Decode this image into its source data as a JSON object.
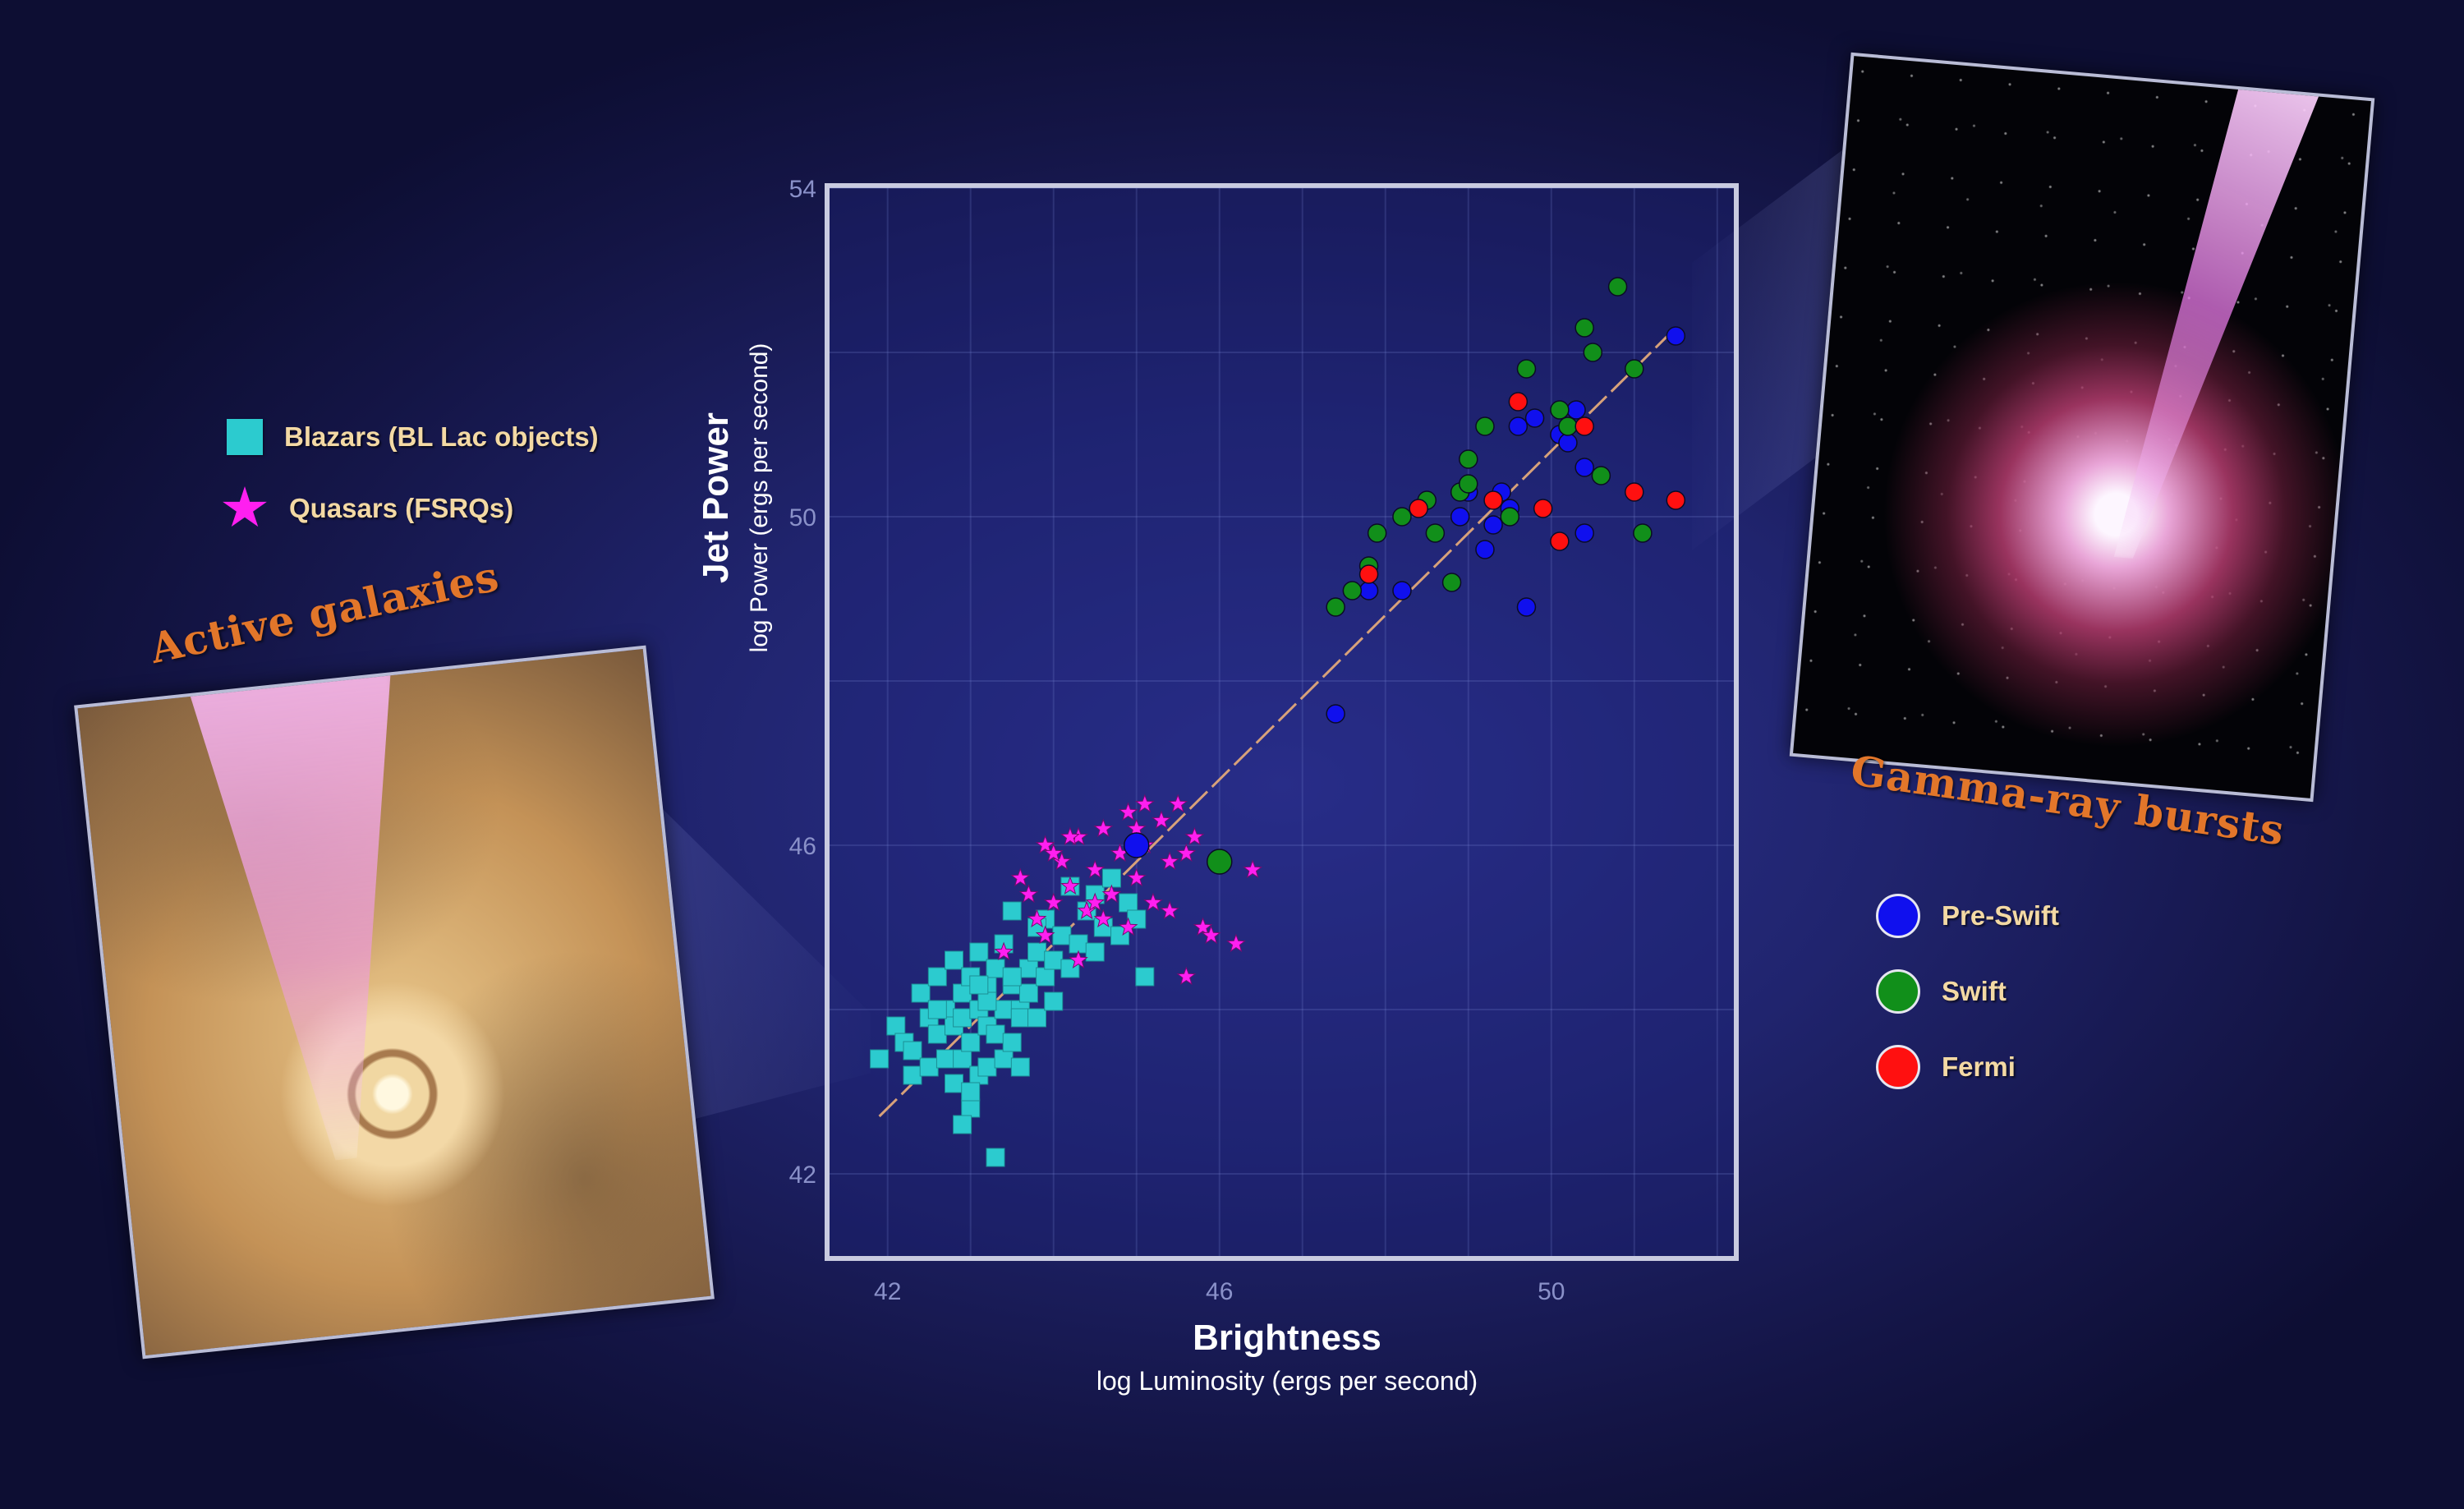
{
  "colors": {
    "blazar": "#2ccbcf",
    "quasar": "#ff1ff0",
    "pre_swift": "#1010ee",
    "swift": "#118f1a",
    "fermi": "#ff1010",
    "fit_line": "#d7a17a"
  },
  "legend_left": [
    {
      "label": "Blazars (BL Lac objects)",
      "icon": "teal-square-icon"
    },
    {
      "label": "Quasars (FSRQs)",
      "icon": "magenta-star-icon"
    }
  ],
  "legend_right": [
    {
      "label": "Pre-Swift",
      "icon": "blue-dot-icon"
    },
    {
      "label": "Swift",
      "icon": "green-dot-icon"
    },
    {
      "label": "Fermi",
      "icon": "red-dot-icon"
    }
  ],
  "images": {
    "agn_title": "Active galaxies",
    "grb_title": "Gamma-ray bursts"
  },
  "chart_data": {
    "type": "scatter",
    "xlabel": "Brightness",
    "xlabel_sub": "log Luminosity (ergs per second)",
    "ylabel": "Jet Power",
    "ylabel_sub": "log Power (ergs per second)",
    "xlim": [
      41.3,
      52.2
    ],
    "ylim": [
      41.0,
      54.0
    ],
    "xticks": [
      42,
      46,
      50
    ],
    "yticks": [
      42,
      46,
      50,
      54
    ],
    "grid": true,
    "legend": "outside-left-and-right",
    "fit_line": {
      "x": [
        41.9,
        51.4
      ],
      "y": [
        42.7,
        52.2
      ]
    },
    "series": [
      {
        "name": "Blazars (BL Lac objects)",
        "marker": "square",
        "points": [
          [
            41.9,
            43.4
          ],
          [
            42.1,
            43.8
          ],
          [
            42.2,
            43.6
          ],
          [
            42.3,
            43.2
          ],
          [
            42.3,
            43.5
          ],
          [
            42.4,
            44.2
          ],
          [
            42.5,
            43.9
          ],
          [
            42.5,
            43.3
          ],
          [
            42.6,
            43.7
          ],
          [
            42.6,
            44.4
          ],
          [
            42.7,
            43.4
          ],
          [
            42.7,
            44.0
          ],
          [
            42.8,
            43.8
          ],
          [
            42.8,
            43.1
          ],
          [
            42.8,
            44.6
          ],
          [
            42.9,
            43.4
          ],
          [
            42.9,
            43.9
          ],
          [
            42.9,
            44.2
          ],
          [
            43.0,
            43.6
          ],
          [
            43.0,
            44.4
          ],
          [
            43.0,
            42.8
          ],
          [
            43.1,
            43.2
          ],
          [
            43.1,
            44.0
          ],
          [
            43.1,
            44.7
          ],
          [
            43.2,
            43.8
          ],
          [
            43.2,
            43.3
          ],
          [
            43.2,
            44.3
          ],
          [
            43.3,
            43.7
          ],
          [
            43.3,
            42.2
          ],
          [
            43.3,
            44.5
          ],
          [
            43.4,
            43.4
          ],
          [
            43.4,
            44.0
          ],
          [
            43.4,
            44.8
          ],
          [
            43.5,
            43.6
          ],
          [
            43.5,
            44.3
          ],
          [
            43.6,
            44.0
          ],
          [
            43.6,
            43.9
          ],
          [
            43.7,
            44.5
          ],
          [
            43.7,
            44.2
          ],
          [
            43.8,
            43.9
          ],
          [
            43.8,
            44.7
          ],
          [
            43.9,
            44.4
          ],
          [
            43.9,
            45.1
          ],
          [
            44.0,
            44.1
          ],
          [
            44.0,
            44.6
          ],
          [
            44.1,
            44.9
          ],
          [
            44.2,
            44.5
          ],
          [
            44.3,
            44.8
          ],
          [
            44.4,
            45.2
          ],
          [
            44.5,
            44.7
          ],
          [
            44.5,
            45.4
          ],
          [
            44.6,
            45.0
          ],
          [
            44.7,
            45.6
          ],
          [
            44.8,
            44.9
          ],
          [
            44.9,
            45.3
          ],
          [
            45.0,
            45.1
          ],
          [
            45.1,
            44.4
          ],
          [
            43.5,
            44.4
          ],
          [
            43.2,
            44.1
          ],
          [
            43.0,
            43.0
          ],
          [
            42.9,
            42.6
          ],
          [
            43.6,
            43.3
          ],
          [
            43.8,
            45.0
          ],
          [
            43.5,
            45.2
          ],
          [
            44.2,
            45.5
          ],
          [
            42.6,
            44.0
          ],
          [
            43.1,
            44.3
          ]
        ]
      },
      {
        "name": "Quasars (FSRQs)",
        "marker": "star",
        "points": [
          [
            43.4,
            44.7
          ],
          [
            43.6,
            45.6
          ],
          [
            43.8,
            45.1
          ],
          [
            43.9,
            46.0
          ],
          [
            44.0,
            45.3
          ],
          [
            44.1,
            45.8
          ],
          [
            44.2,
            45.5
          ],
          [
            44.3,
            46.1
          ],
          [
            44.4,
            45.2
          ],
          [
            44.5,
            45.7
          ],
          [
            44.6,
            46.2
          ],
          [
            44.7,
            45.4
          ],
          [
            44.8,
            45.9
          ],
          [
            44.9,
            46.4
          ],
          [
            45.0,
            45.6
          ],
          [
            45.1,
            46.0
          ],
          [
            45.2,
            45.3
          ],
          [
            45.3,
            46.3
          ],
          [
            45.4,
            45.8
          ],
          [
            45.5,
            46.5
          ],
          [
            45.6,
            45.9
          ],
          [
            45.7,
            46.1
          ],
          [
            45.8,
            45.0
          ],
          [
            45.9,
            44.9
          ],
          [
            46.2,
            44.8
          ],
          [
            46.4,
            45.7
          ],
          [
            45.6,
            44.4
          ],
          [
            44.6,
            45.1
          ],
          [
            44.2,
            46.1
          ],
          [
            44.9,
            45.0
          ],
          [
            45.1,
            46.5
          ],
          [
            44.3,
            44.6
          ],
          [
            43.7,
            45.4
          ],
          [
            45.4,
            45.2
          ],
          [
            44.0,
            45.9
          ],
          [
            45.0,
            46.2
          ],
          [
            44.5,
            45.3
          ],
          [
            43.9,
            44.9
          ]
        ]
      },
      {
        "name": "Pre-Swift",
        "marker": "circle",
        "points": [
          [
            45.0,
            46.0
          ],
          [
            47.4,
            47.6
          ],
          [
            47.8,
            49.1
          ],
          [
            48.2,
            49.1
          ],
          [
            48.9,
            50.0
          ],
          [
            49.0,
            50.3
          ],
          [
            49.2,
            49.6
          ],
          [
            49.3,
            49.9
          ],
          [
            49.4,
            50.3
          ],
          [
            49.5,
            50.1
          ],
          [
            49.6,
            51.1
          ],
          [
            49.7,
            48.9
          ],
          [
            49.8,
            51.2
          ],
          [
            50.1,
            51.0
          ],
          [
            50.2,
            50.9
          ],
          [
            50.3,
            51.3
          ],
          [
            50.4,
            50.6
          ],
          [
            50.4,
            49.8
          ],
          [
            51.5,
            52.2
          ]
        ]
      },
      {
        "name": "Swift",
        "marker": "circle",
        "points": [
          [
            46.0,
            45.8
          ],
          [
            47.4,
            48.9
          ],
          [
            47.6,
            49.1
          ],
          [
            47.8,
            49.4
          ],
          [
            47.9,
            49.8
          ],
          [
            48.2,
            50.0
          ],
          [
            48.5,
            50.2
          ],
          [
            48.6,
            49.8
          ],
          [
            48.8,
            49.2
          ],
          [
            48.9,
            50.3
          ],
          [
            49.0,
            50.7
          ],
          [
            49.2,
            51.1
          ],
          [
            49.5,
            50.0
          ],
          [
            49.7,
            51.8
          ],
          [
            50.1,
            51.3
          ],
          [
            50.2,
            51.1
          ],
          [
            50.4,
            52.3
          ],
          [
            50.6,
            50.5
          ],
          [
            50.8,
            52.8
          ],
          [
            51.1,
            49.8
          ],
          [
            51.0,
            51.8
          ],
          [
            50.5,
            52.0
          ],
          [
            49.0,
            50.4
          ]
        ]
      },
      {
        "name": "Fermi",
        "marker": "circle",
        "points": [
          [
            47.8,
            49.3
          ],
          [
            48.4,
            50.1
          ],
          [
            49.3,
            50.2
          ],
          [
            49.6,
            51.4
          ],
          [
            49.9,
            50.1
          ],
          [
            50.1,
            49.7
          ],
          [
            50.4,
            51.1
          ],
          [
            51.0,
            50.3
          ],
          [
            51.5,
            50.2
          ]
        ]
      }
    ]
  }
}
